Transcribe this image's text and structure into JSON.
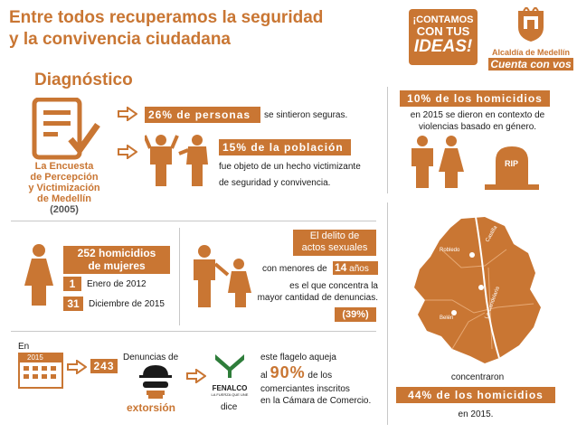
{
  "header": {
    "title_line1": "Entre todos recuperamos la seguridad",
    "title_line2": "y la convivencia ciudadana",
    "section": "Diagnóstico",
    "badge_line1": "¡CONTAMOS",
    "badge_line2": "CON TUS",
    "badge_line3": "IDEAS!",
    "alcaldia": "Alcaldía de Medellín",
    "cuenta": "Cuenta con vos"
  },
  "encuesta": {
    "name_line1": "La Encuesta",
    "name_line2": "de Percepción",
    "name_line3": "y Victimización",
    "name_line4": "de Medellín",
    "year": "(2005)",
    "stat1_box": "26% de personas",
    "stat1_text": "se sintieron seguras.",
    "stat2_box": "15% de la población",
    "stat2_text1": "fue objeto de un hecho victimizante",
    "stat2_text2": "de seguridad y convivencia."
  },
  "homicidios_genero": {
    "box": "10% de los homicidios",
    "text1": "en 2015 se dieron en contexto de",
    "text2": "violencias basado en género.",
    "rip": "RIP"
  },
  "mujeres": {
    "box_line1": "252 homicidios",
    "box_line2": "de mujeres",
    "start_num": "1",
    "start_text": "Enero de 2012",
    "end_num": "31",
    "end_text": "Diciembre de 2015"
  },
  "sexuales": {
    "box_line1": "El delito de",
    "box_line2": "actos sexuales",
    "menores": "con menores de",
    "age_num": "14",
    "age_unit": "años",
    "text1": "es el que concentra la",
    "text2": "mayor cantidad de denuncias.",
    "pct": "(39%)"
  },
  "extorsion": {
    "en": "En",
    "year": "2015",
    "count": "243",
    "denuncias": "Denuncias de",
    "label": "extorsión",
    "fenalco": "FENALCO",
    "fenalco_sub": "LA FUERZA QUE UNE",
    "dice": "dice",
    "text1": "este flagelo aqueja",
    "al": "al",
    "pct": "90%",
    "de_los": "de los",
    "text2": "comerciantes inscritos",
    "text3": "en la Cámara de Comercio."
  },
  "mapa": {
    "robledo": "Robledo",
    "castilla": "Castilla",
    "candelaria": "La Candelaria",
    "belen": "Belén",
    "concentraron": "concentraron",
    "box": "44% de los homicidios",
    "year": "en 2015."
  },
  "colors": {
    "accent": "#c97633",
    "dark": "#1a1a1a"
  }
}
